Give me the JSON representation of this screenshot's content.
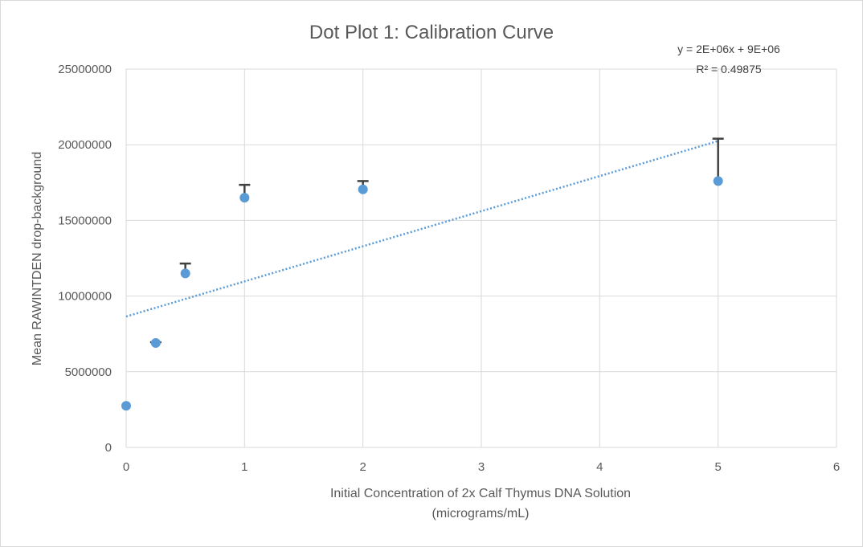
{
  "chart_data": {
    "type": "scatter",
    "title": "Dot Plot 1: Calibration Curve",
    "xlabel_lines": [
      "Initial Concentration of 2x Calf Thymus DNA Solution",
      "(micrograms/mL)"
    ],
    "ylabel": "Mean RAWINTDEN drop-background",
    "xlim": [
      0,
      6
    ],
    "ylim": [
      0,
      25000000
    ],
    "x_ticks": [
      "0",
      "1",
      "2",
      "3",
      "4",
      "5",
      "6"
    ],
    "y_ticks": [
      "0",
      "5000000",
      "10000000",
      "15000000",
      "20000000",
      "25000000"
    ],
    "grid": true,
    "points": [
      {
        "x": 0,
        "y": 2750000,
        "err_plus": 0
      },
      {
        "x": 0.25,
        "y": 6900000,
        "err_plus": 50000
      },
      {
        "x": 0.5,
        "y": 11500000,
        "err_plus": 650000
      },
      {
        "x": 1,
        "y": 16500000,
        "err_plus": 850000
      },
      {
        "x": 2,
        "y": 17050000,
        "err_plus": 550000
      },
      {
        "x": 5,
        "y": 17600000,
        "err_plus": 2800000
      }
    ],
    "trendline": {
      "type": "linear",
      "x0": 0,
      "y0": 8650000,
      "x1": 5,
      "y1": 20250000,
      "equation": "y = 2E+06x + 9E+06",
      "r_squared": "R² = 0.49875"
    },
    "colors": {
      "point": "#5b9bd5",
      "trendline": "#5b9bd5",
      "error_bar": "#404040",
      "grid": "#d9d9d9",
      "text": "#595959"
    }
  }
}
